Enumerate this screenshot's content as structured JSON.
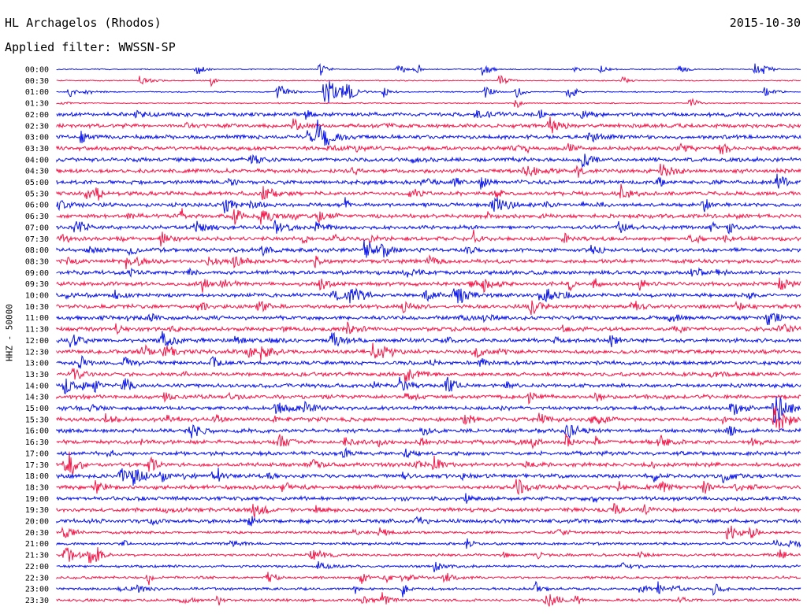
{
  "header": {
    "station": "HL Archagelos (Rhodos)",
    "filter": "Applied filter: WWSSN-SP",
    "date": "2015-10-30"
  },
  "chart_data": {
    "type": "line",
    "title": "HL Archagelos (Rhodos)",
    "subtitle": "Applied filter: WWSSN-SP",
    "ylabel": "HHZ - 50000",
    "xlabel": "",
    "grid": false,
    "colors": [
      "#0a14e6",
      "#f2184a"
    ],
    "y_tick_labels": [
      "00:00",
      "00:30",
      "01:00",
      "01:30",
      "02:00",
      "02:30",
      "03:00",
      "03:30",
      "04:00",
      "04:30",
      "05:00",
      "05:30",
      "06:00",
      "06:30",
      "07:00",
      "07:30",
      "08:00",
      "08:30",
      "09:00",
      "09:30",
      "10:00",
      "10:30",
      "11:00",
      "11:30",
      "12:00",
      "12:30",
      "13:00",
      "13:30",
      "14:00",
      "14:30",
      "15:00",
      "15:30",
      "16:00",
      "16:30",
      "17:00",
      "17:30",
      "18:00",
      "18:30",
      "19:00",
      "19:30",
      "20:00",
      "20:30",
      "21:00",
      "21:30",
      "22:00",
      "22:30",
      "23:00",
      "23:30"
    ],
    "traces_x_range_minutes": [
      0,
      30
    ],
    "notable_events": [
      {
        "trace": "01:00",
        "minute": 10.8,
        "amplitude": "large"
      },
      {
        "trace": "03:00",
        "minute": 10.5,
        "amplitude": "large"
      },
      {
        "trace": "15:00",
        "minute": 28.9,
        "amplitude": "large"
      },
      {
        "trace": "15:30",
        "minute": 28.9,
        "amplitude": "large"
      },
      {
        "trace": "06:00",
        "minute": 17.5,
        "amplitude": "medium"
      },
      {
        "trace": "10:00",
        "minute": 19.5,
        "amplitude": "medium"
      },
      {
        "trace": "20:30",
        "minute": 27.0,
        "amplitude": "medium"
      }
    ]
  }
}
